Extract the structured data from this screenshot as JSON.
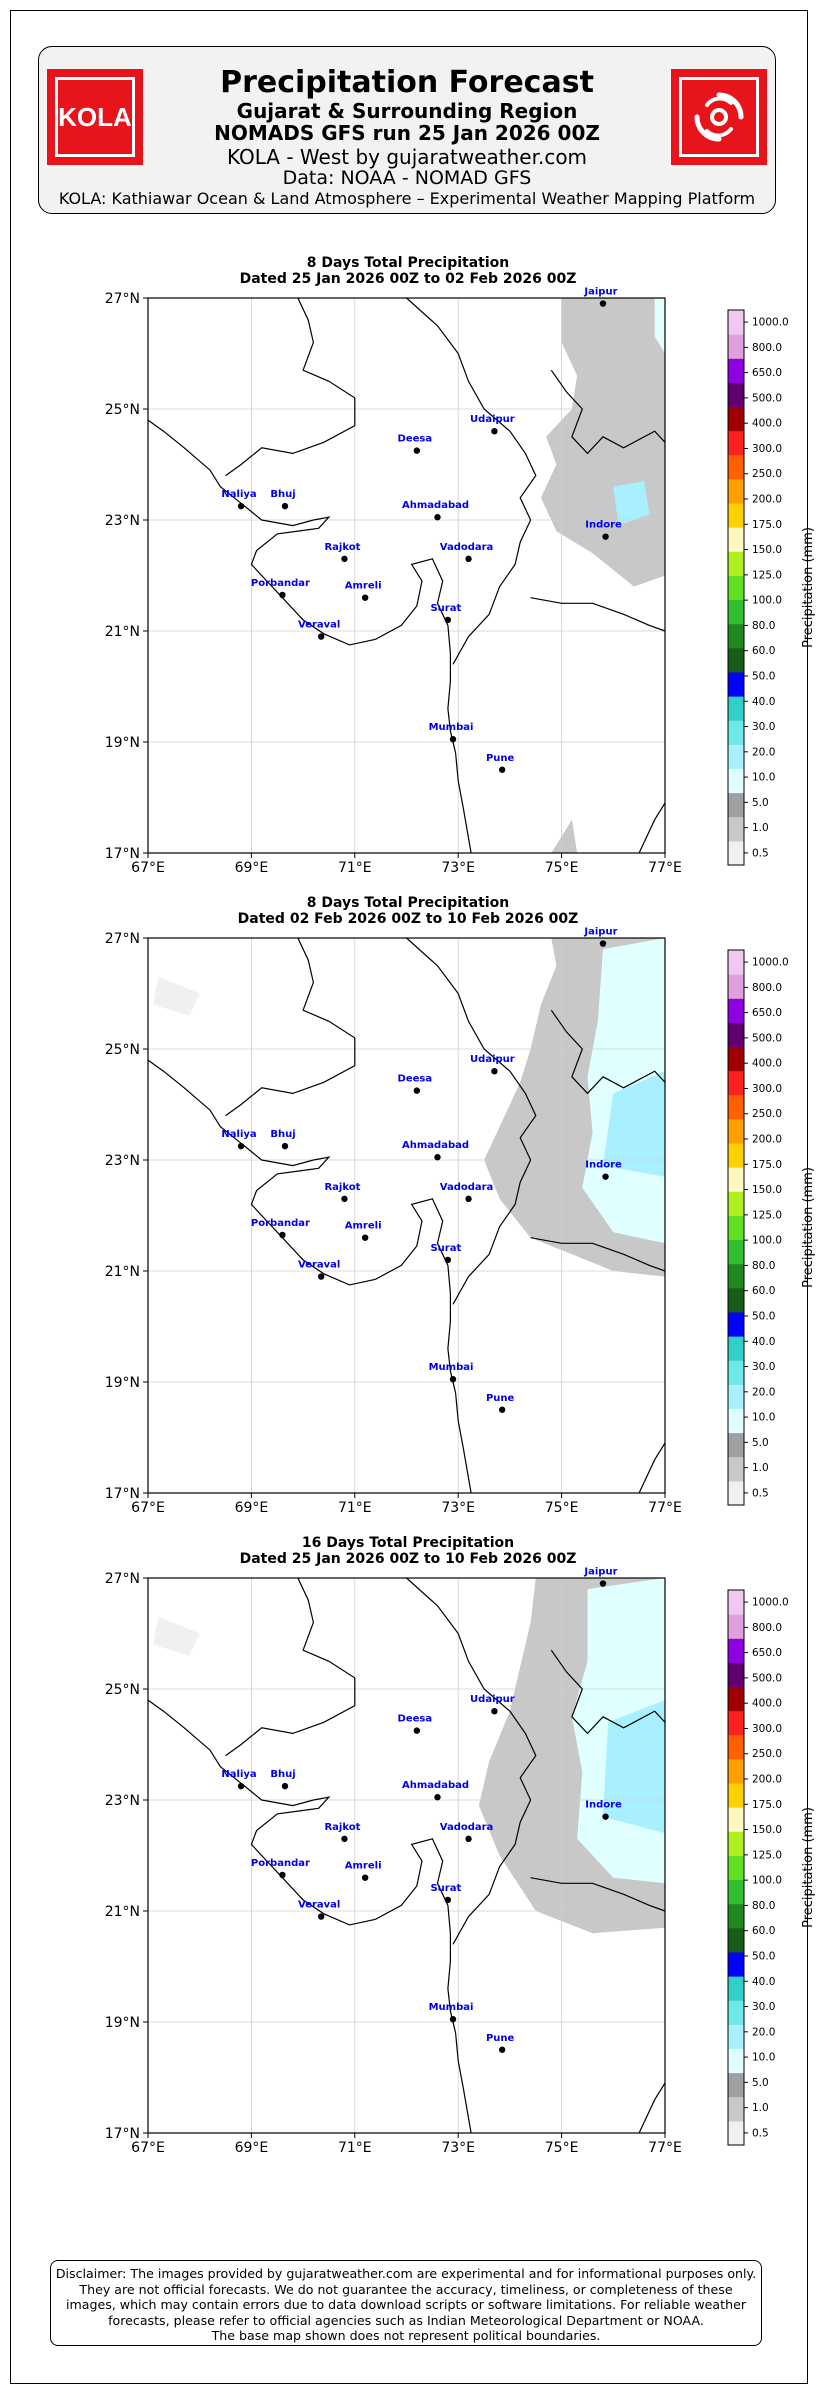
{
  "header": {
    "title": "Precipitation Forecast",
    "subtitle_region": "Gujarat & Surrounding Region",
    "subtitle_run": "NOMADS GFS run 25 Jan 2026 00Z",
    "credit": "KOLA - West by gujaratweather.com",
    "data_source": "Data: NOAA - NOMAD GFS",
    "platform": "KOLA: Kathiawar Ocean & Land Atmosphere – Experimental Weather Mapping Platform",
    "logo_left_text": "KOLA",
    "logo_right_icon": "cyclone-icon",
    "logo_color": "#e8141b"
  },
  "map": {
    "lon_ticks": [
      "67°E",
      "69°E",
      "71°E",
      "73°E",
      "75°E",
      "77°E"
    ],
    "lat_ticks": [
      "27°N",
      "25°N",
      "23°N",
      "21°N",
      "19°N",
      "17°N"
    ],
    "lon_range": [
      67,
      77
    ],
    "lat_range": [
      17,
      27
    ],
    "cities": [
      {
        "name": "Jaipur",
        "lon": 75.8,
        "lat": 26.9
      },
      {
        "name": "Udaipur",
        "lon": 73.7,
        "lat": 24.6
      },
      {
        "name": "Deesa",
        "lon": 72.2,
        "lat": 24.25
      },
      {
        "name": "Naliya",
        "lon": 68.8,
        "lat": 23.25
      },
      {
        "name": "Bhuj",
        "lon": 69.65,
        "lat": 23.25
      },
      {
        "name": "Ahmadabad",
        "lon": 72.6,
        "lat": 23.05
      },
      {
        "name": "Indore",
        "lon": 75.85,
        "lat": 22.7
      },
      {
        "name": "Rajkot",
        "lon": 70.8,
        "lat": 22.3
      },
      {
        "name": "Vadodara",
        "lon": 73.2,
        "lat": 22.3
      },
      {
        "name": "Porbandar",
        "lon": 69.6,
        "lat": 21.65
      },
      {
        "name": "Amreli",
        "lon": 71.2,
        "lat": 21.6
      },
      {
        "name": "Surat",
        "lon": 72.8,
        "lat": 21.2
      },
      {
        "name": "Veraval",
        "lon": 70.35,
        "lat": 20.9
      },
      {
        "name": "Mumbai",
        "lon": 72.9,
        "lat": 19.05
      },
      {
        "name": "Pune",
        "lon": 73.85,
        "lat": 18.5
      }
    ],
    "city_label_color": "#0000ee"
  },
  "colorbar": {
    "label": "Precipitation (mm)",
    "ticks": [
      "0.5",
      "1.0",
      "5.0",
      "10.0",
      "20.0",
      "30.0",
      "40.0",
      "50.0",
      "60.0",
      "80.0",
      "100.0",
      "125.0",
      "150.0",
      "175.0",
      "200.0",
      "250.0",
      "300.0",
      "400.0",
      "500.0",
      "650.0",
      "800.0",
      "1000.0"
    ],
    "colors": [
      "#f0f0f0",
      "#c8c8c8",
      "#a0a0a0",
      "#e0ffff",
      "#a8f0ff",
      "#70e8e8",
      "#30d0c8",
      "#0000ff",
      "#1a5c1a",
      "#208a20",
      "#30c030",
      "#60e020",
      "#b0f020",
      "#fff8c0",
      "#ffd000",
      "#ffa000",
      "#ff6000",
      "#ff2020",
      "#a00000",
      "#600070",
      "#9000e0",
      "#e0a0e0",
      "#f0c8f0"
    ]
  },
  "panels": [
    {
      "title_line1": "8 Days Total Precipitation",
      "title_line2": "Dated 25 Jan 2026 00Z to 02 Feb 2026 00Z"
    },
    {
      "title_line1": "8 Days Total Precipitation",
      "title_line2": "Dated 02 Feb 2026 00Z to 10 Feb 2026 00Z"
    },
    {
      "title_line1": "16 Days Total Precipitation",
      "title_line2": "Dated 25 Jan 2026 00Z to 10 Feb 2026 00Z"
    }
  ],
  "disclaimer": {
    "line1": "Disclaimer: The images provided by gujaratweather.com are experimental and for informational purposes only.",
    "line2": "They are not official forecasts. We do not guarantee the accuracy, timeliness, or completeness of these",
    "line3": "images, which may contain errors due to data download scripts or software limitations. For reliable weather",
    "line4": "forecasts, please refer to official agencies such as Indian Meteorological Department or NOAA.",
    "line5": "The base map shown does not represent political boundaries."
  }
}
